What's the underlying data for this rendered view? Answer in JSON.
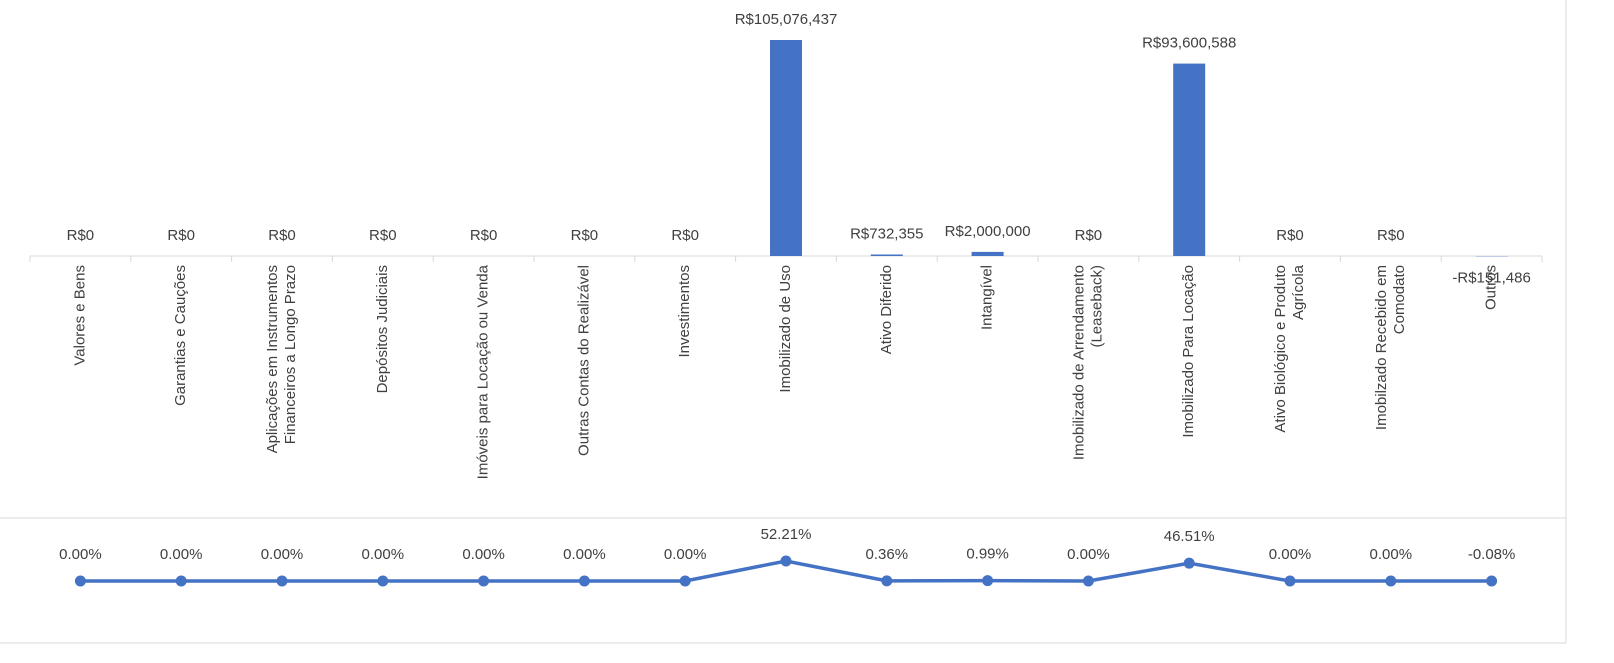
{
  "chart_data": [
    {
      "type": "bar",
      "categories": [
        "Valores e Bens",
        "Garantias e Cauções",
        "Aplicações em Instrumentos\nFinanceiros a Longo Prazo",
        "Depósitos Judiciais",
        "Imóveis para Locação ou Venda",
        "Outras Contas do Realizável",
        "Investimentos",
        "Imobilizado de Uso",
        "Ativo Diferido",
        "Intangível",
        "Imobilizado de Arrendamento\n(Leaseback)",
        "Imobilizado Para Locação",
        "Ativo Biológico e Produto\nAgrícola",
        "Imobilzado Recebido em\nComodato",
        "Outros"
      ],
      "values": [
        0,
        0,
        0,
        0,
        0,
        0,
        0,
        105076437,
        732355,
        2000000,
        0,
        93600588,
        0,
        0,
        -151486
      ],
      "value_labels": [
        "R$0",
        "R$0",
        "R$0",
        "R$0",
        "R$0",
        "R$0",
        "R$0",
        "R$105,076,437",
        "R$732,355",
        "R$2,000,000",
        "R$0",
        "R$93,600,588",
        "R$0",
        "R$0",
        "-R$151,486"
      ],
      "color": "#4472c4"
    },
    {
      "type": "line",
      "values": [
        0,
        0,
        0,
        0,
        0,
        0,
        0,
        52.21,
        0.36,
        0.99,
        0,
        46.51,
        0,
        0,
        -0.08
      ],
      "value_labels": [
        "0.00%",
        "0.00%",
        "0.00%",
        "0.00%",
        "0.00%",
        "0.00%",
        "0.00%",
        "52.21%",
        "0.36%",
        "0.99%",
        "0.00%",
        "46.51%",
        "0.00%",
        "0.00%",
        "-0.08%"
      ],
      "color": "#4472c4"
    }
  ]
}
